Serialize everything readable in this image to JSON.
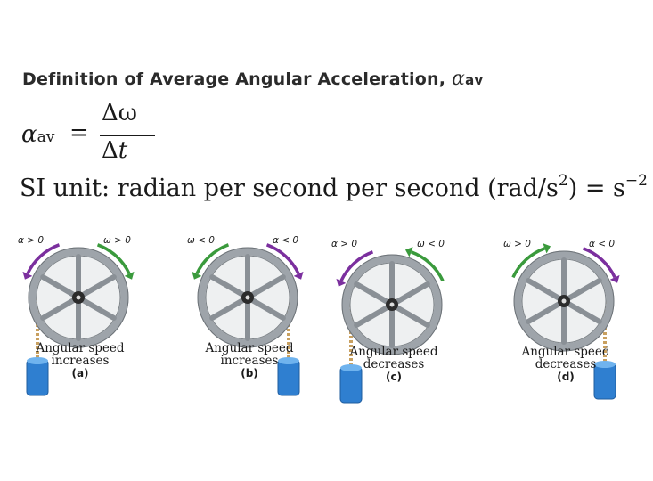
{
  "title": {
    "text": "Definition of Average Angular Acceleration,",
    "symbol": "α",
    "subscript": "av"
  },
  "equation": {
    "lhs_symbol": "α",
    "lhs_subscript": "av",
    "equals": "=",
    "numerator": "Δω",
    "denominator_delta": "Δ",
    "denominator_var": "t"
  },
  "si_unit": {
    "text": "SI unit: radian per second per second (rad/s",
    "exp1": "2",
    "mid": ") = s",
    "exp2": "−2"
  },
  "panels": [
    {
      "left_label": "α > 0",
      "right_label": "ω > 0",
      "caption_line1": "Angular speed",
      "caption_line2": "increases",
      "letter": "(a)"
    },
    {
      "left_label": "ω < 0",
      "right_label": "α < 0",
      "caption_line1": "Angular speed",
      "caption_line2": "increases",
      "letter": "(b)"
    },
    {
      "left_label": "α > 0",
      "right_label": "ω < 0",
      "caption_line1": "Angular speed",
      "caption_line2": "decreases",
      "letter": "(c)"
    },
    {
      "left_label": "ω > 0",
      "right_label": "α < 0",
      "caption_line1": "Angular speed",
      "caption_line2": "decreases",
      "letter": "(d)"
    }
  ],
  "colors": {
    "alpha_arrow": "#7b2f9e",
    "omega_arrow": "#3a9a3c",
    "wheel_rim": "#9ea4aa",
    "block": "#2f7fd0",
    "rope": "#c8a060"
  }
}
